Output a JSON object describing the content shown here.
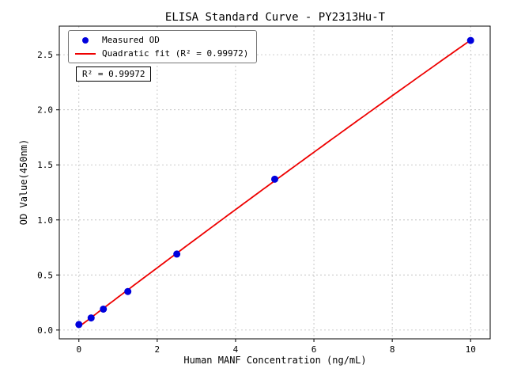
{
  "chart_data": {
    "type": "scatter",
    "title": "ELISA Standard Curve - PY2313Hu-T",
    "xlabel": "Human MANF Concentration (ng/mL)",
    "ylabel": "OD Value(450nm)",
    "x": [
      0,
      0.3125,
      0.625,
      1.25,
      2.5,
      5,
      10
    ],
    "y": [
      0.05,
      0.11,
      0.19,
      0.35,
      0.69,
      1.37,
      2.63
    ],
    "xticks": [
      0,
      2,
      4,
      6,
      8,
      10
    ],
    "xtick_labels": [
      "0",
      "2",
      "4",
      "6",
      "8",
      "10"
    ],
    "yticks": [
      0.0,
      0.5,
      1.0,
      1.5,
      2.0,
      2.5
    ],
    "ytick_labels": [
      "0.0",
      "0.5",
      "1.0",
      "1.5",
      "2.0",
      "2.5"
    ],
    "xlim": [
      -0.5,
      10.5
    ],
    "ylim": [
      -0.08,
      2.76
    ],
    "grid": true,
    "fit": {
      "type": "quadratic",
      "r_squared": "0.99972"
    },
    "legend": {
      "position": "upper-left",
      "entries": [
        {
          "label": "Measured OD",
          "marker": "dot"
        },
        {
          "label": "Quadratic fit (R² = 0.99972)",
          "marker": "line"
        }
      ]
    },
    "annotation": "R² = 0.99972",
    "colors": {
      "points": "#0000dd",
      "line": "#ee0000",
      "grid": "#bbbbbb",
      "frame": "#000000",
      "background": "#ffffff"
    }
  }
}
